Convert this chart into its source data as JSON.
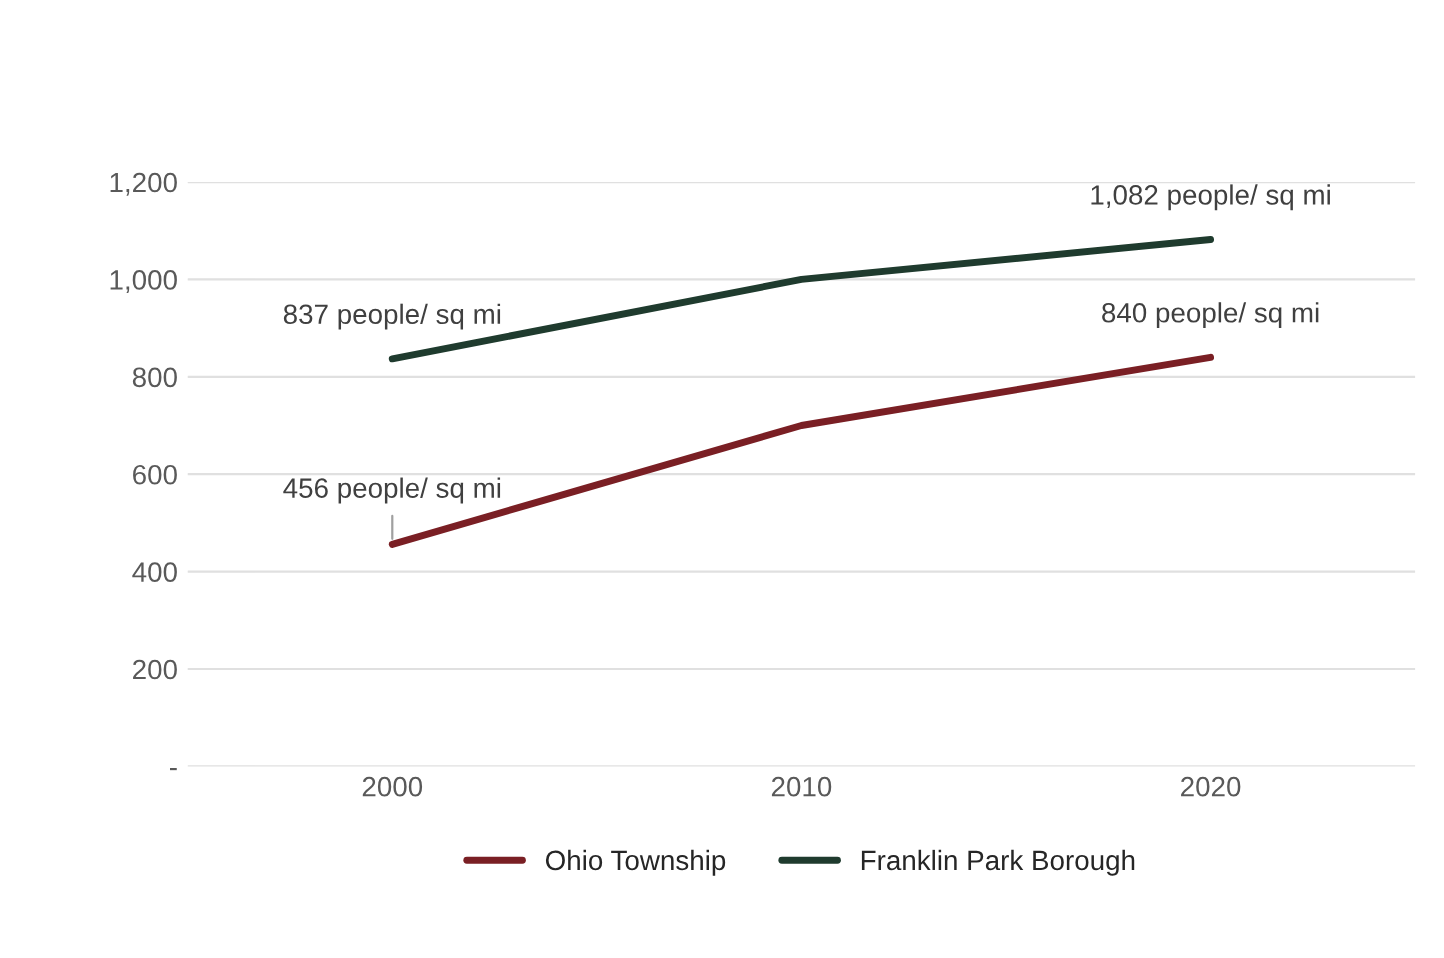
{
  "chart_data": {
    "type": "line",
    "categories": [
      "2000",
      "2010",
      "2020"
    ],
    "series": [
      {
        "name": "Ohio Township",
        "color": "#7a1f24",
        "values": [
          456,
          700,
          840
        ]
      },
      {
        "name": "Franklin Park Borough",
        "color": "#1f3b2e",
        "values": [
          837,
          1000,
          1082
        ]
      }
    ],
    "ylim": [
      0,
      1200
    ],
    "yticks": [
      {
        "value": 0,
        "label": "-"
      },
      {
        "value": 200,
        "label": "200"
      },
      {
        "value": 400,
        "label": "400"
      },
      {
        "value": 600,
        "label": "600"
      },
      {
        "value": 800,
        "label": "800"
      },
      {
        "value": 1000,
        "label": "1,000"
      },
      {
        "value": 1200,
        "label": "1,200"
      }
    ],
    "annotations": [
      {
        "text": "456 people/ sq mi",
        "x": "2000",
        "y": 456
      },
      {
        "text": "837 people/ sq mi",
        "x": "2000",
        "y": 837
      },
      {
        "text": "840 people/ sq mi",
        "x": "2020",
        "y": 840
      },
      {
        "text": "1,082 people/ sq mi",
        "x": "2020",
        "y": 1082
      }
    ],
    "grid": "y",
    "legend": "bottom",
    "marker": "none",
    "line_style": "solid"
  }
}
